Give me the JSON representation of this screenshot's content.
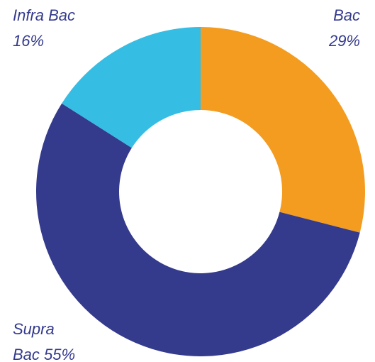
{
  "chart_data": {
    "type": "donut",
    "categories": [
      "Bac",
      "Supra Bac",
      "Infra Bac"
    ],
    "values": [
      29,
      55,
      16
    ],
    "value_labels": [
      "29%",
      "55%",
      "16%"
    ],
    "colors": [
      "#f39c1f",
      "#343a8c",
      "#36bde3"
    ]
  }
}
